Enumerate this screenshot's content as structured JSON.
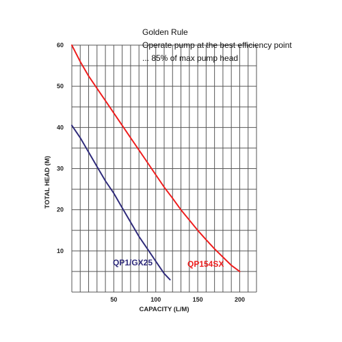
{
  "chart_data": {
    "type": "line",
    "xlabel": "CAPACITY (L/M)",
    "ylabel": "TOTAL HEAD (M)",
    "xlim": [
      0,
      220
    ],
    "ylim": [
      0,
      60
    ],
    "x_ticks": [
      50,
      100,
      150,
      200
    ],
    "y_ticks": [
      10,
      20,
      30,
      40,
      50,
      60
    ],
    "grid": true,
    "annotation_lines": [
      "Golden Rule",
      "Operate pump at the best efficiency point",
      "... 85% of max pump head"
    ],
    "series": [
      {
        "name": "QP1/GX25",
        "color": "#2e2a7a",
        "points": [
          [
            0,
            40.5
          ],
          [
            10,
            37.5
          ],
          [
            20,
            34
          ],
          [
            30,
            30.5
          ],
          [
            40,
            27
          ],
          [
            50,
            24
          ],
          [
            60,
            20.5
          ],
          [
            70,
            17
          ],
          [
            80,
            13.5
          ],
          [
            90,
            10.5
          ],
          [
            100,
            7.5
          ],
          [
            110,
            4.5
          ],
          [
            117,
            3
          ]
        ]
      },
      {
        "name": "QP154SX",
        "color": "#ee1c1c",
        "points": [
          [
            0,
            60
          ],
          [
            10,
            56
          ],
          [
            20,
            52.5
          ],
          [
            30,
            49.5
          ],
          [
            40,
            46.5
          ],
          [
            50,
            43.5
          ],
          [
            60,
            40.5
          ],
          [
            70,
            37.5
          ],
          [
            80,
            34.5
          ],
          [
            90,
            31.5
          ],
          [
            100,
            28.5
          ],
          [
            110,
            25.5
          ],
          [
            120,
            22.8
          ],
          [
            130,
            20
          ],
          [
            140,
            17.5
          ],
          [
            150,
            15
          ],
          [
            160,
            12.7
          ],
          [
            170,
            10.5
          ],
          [
            180,
            8.5
          ],
          [
            190,
            6.5
          ],
          [
            200,
            5
          ]
        ]
      }
    ]
  }
}
